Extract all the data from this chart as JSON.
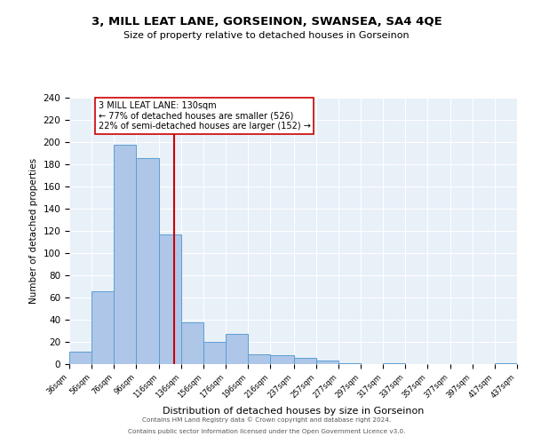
{
  "title": "3, MILL LEAT LANE, GORSEINON, SWANSEA, SA4 4QE",
  "subtitle": "Size of property relative to detached houses in Gorseinon",
  "xlabel": "Distribution of detached houses by size in Gorseinon",
  "ylabel": "Number of detached properties",
  "bin_edges": [
    36,
    56,
    76,
    96,
    116,
    136,
    156,
    176,
    196,
    216,
    237,
    257,
    277,
    297,
    317,
    337,
    357,
    377,
    397,
    417,
    437
  ],
  "bin_counts": [
    11,
    66,
    198,
    186,
    117,
    38,
    20,
    27,
    9,
    8,
    6,
    3,
    1,
    0,
    1,
    0,
    0,
    0,
    0,
    1
  ],
  "bar_color": "#aec6e8",
  "bar_edge_color": "#5a9fd4",
  "vline_x": 130,
  "vline_color": "#cc0000",
  "annotation_text": "3 MILL LEAT LANE: 130sqm\n← 77% of detached houses are smaller (526)\n22% of semi-detached houses are larger (152) →",
  "annotation_box_edge_color": "#cc0000",
  "annotation_box_face_color": "#ffffff",
  "ylim": [
    0,
    240
  ],
  "yticks": [
    0,
    20,
    40,
    60,
    80,
    100,
    120,
    140,
    160,
    180,
    200,
    220,
    240
  ],
  "tick_labels": [
    "36sqm",
    "56sqm",
    "76sqm",
    "96sqm",
    "116sqm",
    "136sqm",
    "156sqm",
    "176sqm",
    "196sqm",
    "216sqm",
    "237sqm",
    "257sqm",
    "277sqm",
    "297sqm",
    "317sqm",
    "337sqm",
    "357sqm",
    "377sqm",
    "397sqm",
    "417sqm",
    "437sqm"
  ],
  "bg_color": "#e8f0f8",
  "footer_line1": "Contains HM Land Registry data © Crown copyright and database right 2024.",
  "footer_line2": "Contains public sector information licensed under the Open Government Licence v3.0."
}
